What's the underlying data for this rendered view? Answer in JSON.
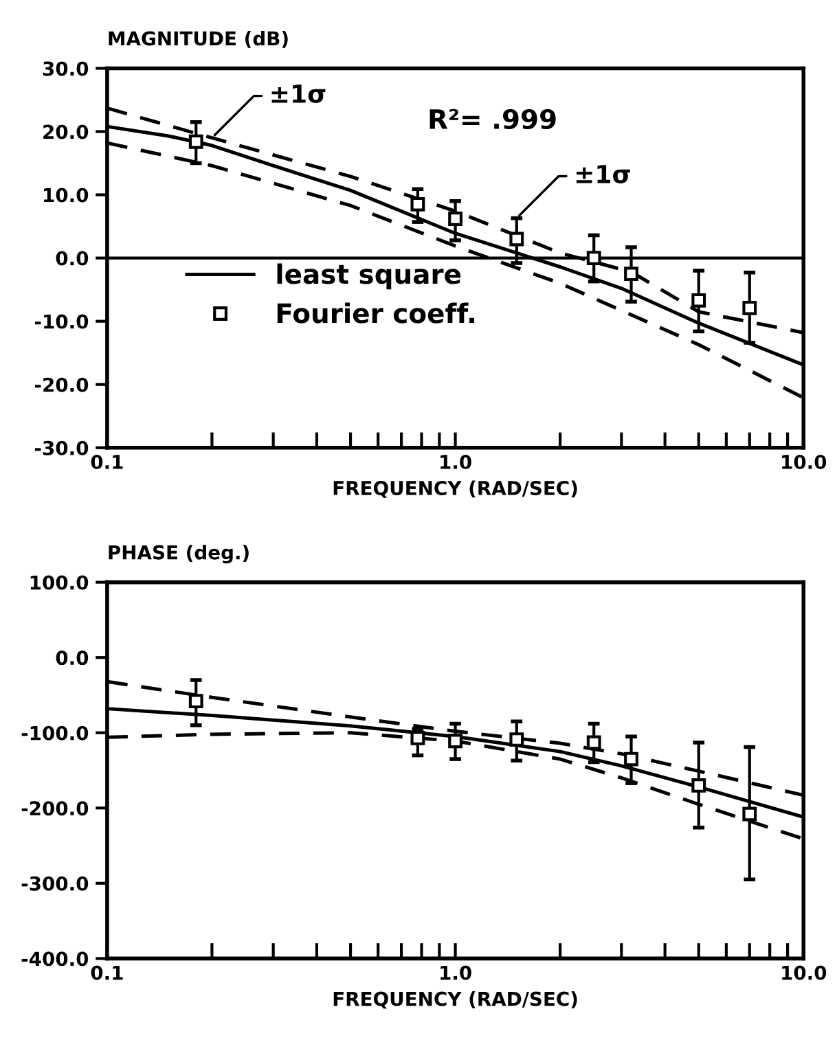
{
  "chart_data": [
    {
      "type": "line",
      "ylabel": "MAGNITUDE (dB)",
      "xlabel": "FREQUENCY (RAD/SEC)",
      "log": "x",
      "legend": "center left",
      "xlim": [
        0.1,
        10.0
      ],
      "xticks": [
        {
          "value": 0.1,
          "label": "0.1"
        },
        {
          "value": 0.2,
          "label": null
        },
        {
          "value": 0.3,
          "label": null
        },
        {
          "value": 0.4,
          "label": null
        },
        {
          "value": 0.5,
          "label": null
        },
        {
          "value": 0.6,
          "label": null
        },
        {
          "value": 0.7,
          "label": null
        },
        {
          "value": 0.8,
          "label": null
        },
        {
          "value": 0.9,
          "label": null
        },
        {
          "value": 1.0,
          "label": "1.0"
        },
        {
          "value": 2.0,
          "label": null
        },
        {
          "value": 3.0,
          "label": null
        },
        {
          "value": 4.0,
          "label": null
        },
        {
          "value": 5.0,
          "label": null
        },
        {
          "value": 6.0,
          "label": null
        },
        {
          "value": 7.0,
          "label": null
        },
        {
          "value": 8.0,
          "label": null
        },
        {
          "value": 9.0,
          "label": null
        },
        {
          "value": 10.0,
          "label": "10.0"
        }
      ],
      "ylim": [
        -30,
        30
      ],
      "yticks": [
        {
          "value": -30,
          "label": "-30.0"
        },
        {
          "value": -20,
          "label": "-20.0"
        },
        {
          "value": -10,
          "label": "-10.0"
        },
        {
          "value": 0,
          "label": "0.0"
        },
        {
          "value": 10,
          "label": "10.0"
        },
        {
          "value": 20,
          "label": "20.0"
        },
        {
          "value": 30,
          "label": "30.0"
        }
      ],
      "ref_lines": [
        {
          "axis": "y",
          "value": 0,
          "color": "#000000",
          "line_style": "solid"
        }
      ],
      "annotations": [
        {
          "text": "±1σ",
          "x": 0.2,
          "y": 19.0
        },
        {
          "text": "±1σ",
          "x": 1.5,
          "y": 6.3
        },
        "R²= .999"
      ],
      "series": [
        {
          "name": "least square",
          "color": "#000000",
          "line_style": "solid",
          "marker": "none",
          "x": [
            0.1,
            0.15,
            0.2,
            0.3,
            0.5,
            1.0,
            2.0,
            3.0,
            5.0,
            10.0
          ],
          "values": [
            20.8,
            19.3,
            17.8,
            14.6,
            10.7,
            3.9,
            -1.4,
            -4.8,
            -10.3,
            -16.9
          ]
        },
        {
          "color": "#000000",
          "line_style": "dashed",
          "marker": "none",
          "x": [
            0.1,
            0.2,
            0.5,
            1.0,
            2.0,
            3.2,
            5.0,
            10.0
          ],
          "values": [
            23.7,
            19.0,
            12.9,
            7.4,
            0.8,
            -2.2,
            -8.5,
            -11.8
          ]
        },
        {
          "color": "#000000",
          "line_style": "dashed",
          "marker": "none",
          "x": [
            0.1,
            0.2,
            0.5,
            1.0,
            2.0,
            5.0,
            10.0
          ],
          "values": [
            18.2,
            14.6,
            8.3,
            1.9,
            -4.0,
            -13.7,
            -22.1
          ]
        },
        {
          "name": "Fourier coeff.",
          "type": "scatter",
          "color": "#000000",
          "marker": "square",
          "x": [
            0.18,
            0.78,
            1.0,
            1.5,
            2.5,
            3.2,
            5.0,
            7.0
          ],
          "values": [
            18.4,
            8.5,
            6.2,
            3.0,
            0.0,
            -2.5,
            -6.7,
            -7.9
          ],
          "errors": [
            [
              15.0,
              21.5
            ],
            [
              5.7,
              10.9
            ],
            [
              2.8,
              9.0
            ],
            [
              -0.8,
              6.3
            ],
            [
              -3.7,
              3.6
            ],
            [
              -6.9,
              1.7
            ],
            [
              -11.6,
              -2.0
            ],
            [
              -13.4,
              -2.3
            ]
          ]
        }
      ]
    },
    {
      "type": "line",
      "ylabel": "PHASE (deg.)",
      "xlabel": "FREQUENCY (RAD/SEC)",
      "log": "x",
      "xlim": [
        0.1,
        10.0
      ],
      "xticks": [
        {
          "value": 0.1,
          "label": "0.1"
        },
        {
          "value": 0.2,
          "label": null
        },
        {
          "value": 0.3,
          "label": null
        },
        {
          "value": 0.4,
          "label": null
        },
        {
          "value": 0.5,
          "label": null
        },
        {
          "value": 0.6,
          "label": null
        },
        {
          "value": 0.7,
          "label": null
        },
        {
          "value": 0.8,
          "label": null
        },
        {
          "value": 0.9,
          "label": null
        },
        {
          "value": 1.0,
          "label": "1.0"
        },
        {
          "value": 2.0,
          "label": null
        },
        {
          "value": 3.0,
          "label": null
        },
        {
          "value": 4.0,
          "label": null
        },
        {
          "value": 5.0,
          "label": null
        },
        {
          "value": 6.0,
          "label": null
        },
        {
          "value": 7.0,
          "label": null
        },
        {
          "value": 8.0,
          "label": null
        },
        {
          "value": 9.0,
          "label": null
        },
        {
          "value": 10.0,
          "label": "10.0"
        }
      ],
      "ylim": [
        -400,
        100
      ],
      "yticks": [
        {
          "value": -400,
          "label": "-400.0"
        },
        {
          "value": -300,
          "label": "-300.0"
        },
        {
          "value": -200,
          "label": "-200.0"
        },
        {
          "value": -100,
          "label": "-100.0"
        },
        {
          "value": 0,
          "label": "0.0"
        },
        {
          "value": 100,
          "label": "100.0"
        }
      ],
      "series": [
        {
          "color": "#000000",
          "line_style": "solid",
          "marker": "none",
          "x": [
            0.1,
            0.2,
            0.5,
            1.0,
            2.0,
            3.0,
            5.0,
            10.0
          ],
          "values": [
            -68,
            -77,
            -91,
            -105,
            -125,
            -144,
            -172,
            -212
          ]
        },
        {
          "color": "#000000",
          "line_style": "dashed",
          "marker": "none",
          "x": [
            0.1,
            0.2,
            0.5,
            1.0,
            2.0,
            3.0,
            5.0,
            10.0
          ],
          "values": [
            -32,
            -53,
            -79,
            -98,
            -114,
            -128,
            -151,
            -183
          ]
        },
        {
          "color": "#000000",
          "line_style": "dashed",
          "marker": "none",
          "x": [
            0.1,
            0.2,
            0.5,
            1.0,
            2.0,
            3.0,
            5.0,
            10.0
          ],
          "values": [
            -106,
            -102,
            -100,
            -111,
            -135,
            -160,
            -195,
            -241
          ]
        },
        {
          "type": "scatter",
          "color": "#000000",
          "marker": "square",
          "x": [
            0.18,
            0.78,
            1.0,
            1.5,
            2.5,
            3.2,
            5.0,
            7.0
          ],
          "values": [
            -58,
            -107,
            -111,
            -109,
            -113,
            -135,
            -170,
            -208
          ],
          "errors": [
            [
              -90,
              -30
            ],
            [
              -130,
              -95
            ],
            [
              -135,
              -88
            ],
            [
              -137,
              -85
            ],
            [
              -139,
              -88
            ],
            [
              -167,
              -105
            ],
            [
              -226,
              -113
            ],
            [
              -295,
              -119
            ]
          ]
        }
      ]
    }
  ]
}
